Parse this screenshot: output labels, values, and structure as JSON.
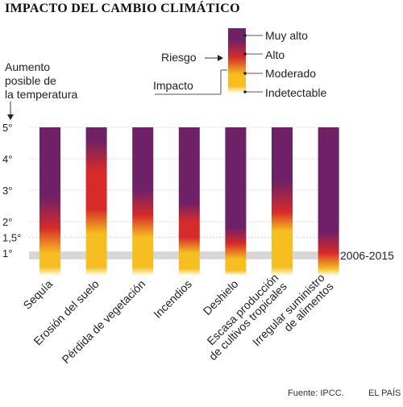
{
  "title": "IMPACTO DEL CAMBIO CLIMÁTICO",
  "y_intro": [
    "Aumento",
    "posible de",
    "la temperatura"
  ],
  "legend": {
    "riesgo_label": "Riesgo",
    "impacto_label": "Impacto",
    "levels": [
      "Muy alto",
      "Alto",
      "Moderado",
      "Indetectable"
    ]
  },
  "colors": {
    "muy_alto": "#6e2167",
    "alto": "#d62b2a",
    "moderado": "#f7be21",
    "indetectable": "#fffbe0",
    "band": "#d3d3d3"
  },
  "chart_data": {
    "type": "heatmap",
    "title": "IMPACTO DEL CAMBIO CLIMÁTICO",
    "ylabel": "Aumento posible de la temperatura",
    "ylim": [
      0.3,
      5
    ],
    "y_ticks": [
      {
        "value": 5,
        "label": "5°"
      },
      {
        "value": 4,
        "label": "4°"
      },
      {
        "value": 3,
        "label": "3°"
      },
      {
        "value": 2,
        "label": "2°"
      },
      {
        "value": 1.5,
        "label": "1,5°"
      },
      {
        "value": 1,
        "label": "1°"
      }
    ],
    "reference_band": {
      "label": "2006-2015",
      "range": [
        0.8,
        1.05
      ]
    },
    "categories": [
      "Sequía",
      "Erosión del suelo",
      "Pérdida de vegetación",
      "Incendios",
      "Deshielo",
      "Escasa producción de cultivos tropicales",
      "Irregular suministro de alimentos"
    ],
    "category_lines": [
      [
        "Sequía"
      ],
      [
        "Erosión del suelo"
      ],
      [
        "Pérdida de vegetación"
      ],
      [
        "Incendios"
      ],
      [
        "Deshielo"
      ],
      [
        "Escasa producción",
        "de cultivos tropicales"
      ],
      [
        "Irregular suministro",
        "de alimentos"
      ]
    ],
    "series": [
      {
        "stops": [
          [
            0.3,
            "indetectable"
          ],
          [
            0.55,
            "moderado"
          ],
          [
            1.0,
            "moderado"
          ],
          [
            1.8,
            "alto"
          ],
          [
            2.8,
            "muy_alto"
          ],
          [
            5,
            "muy_alto"
          ]
        ]
      },
      {
        "stops": [
          [
            0.3,
            "indetectable"
          ],
          [
            0.55,
            "moderado"
          ],
          [
            1.6,
            "moderado"
          ],
          [
            2.4,
            "alto"
          ],
          [
            3.6,
            "alto"
          ],
          [
            4.6,
            "muy_alto"
          ],
          [
            5,
            "muy_alto"
          ]
        ]
      },
      {
        "stops": [
          [
            0.3,
            "indetectable"
          ],
          [
            0.55,
            "moderado"
          ],
          [
            1.5,
            "moderado"
          ],
          [
            2.2,
            "alto"
          ],
          [
            3.0,
            "muy_alto"
          ],
          [
            5,
            "muy_alto"
          ]
        ]
      },
      {
        "stops": [
          [
            0.3,
            "indetectable"
          ],
          [
            0.5,
            "moderado"
          ],
          [
            1.0,
            "moderado"
          ],
          [
            1.5,
            "alto"
          ],
          [
            2.0,
            "alto"
          ],
          [
            2.6,
            "muy_alto"
          ],
          [
            5,
            "muy_alto"
          ]
        ]
      },
      {
        "stops": [
          [
            0.3,
            "indetectable"
          ],
          [
            0.45,
            "moderado"
          ],
          [
            0.8,
            "moderado"
          ],
          [
            1.3,
            "alto"
          ],
          [
            1.8,
            "muy_alto"
          ],
          [
            5,
            "muy_alto"
          ]
        ]
      },
      {
        "stops": [
          [
            0.3,
            "indetectable"
          ],
          [
            0.55,
            "moderado"
          ],
          [
            1.7,
            "moderado"
          ],
          [
            2.3,
            "alto"
          ],
          [
            3.3,
            "muy_alto"
          ],
          [
            5,
            "muy_alto"
          ]
        ]
      },
      {
        "stops": [
          [
            0.3,
            "indetectable"
          ],
          [
            0.5,
            "moderado"
          ],
          [
            1.0,
            "alto"
          ],
          [
            1.7,
            "muy_alto"
          ],
          [
            5,
            "muy_alto"
          ]
        ]
      }
    ]
  },
  "footer": {
    "source": "Fuente: IPCC.",
    "brand": "EL PAÍS"
  }
}
